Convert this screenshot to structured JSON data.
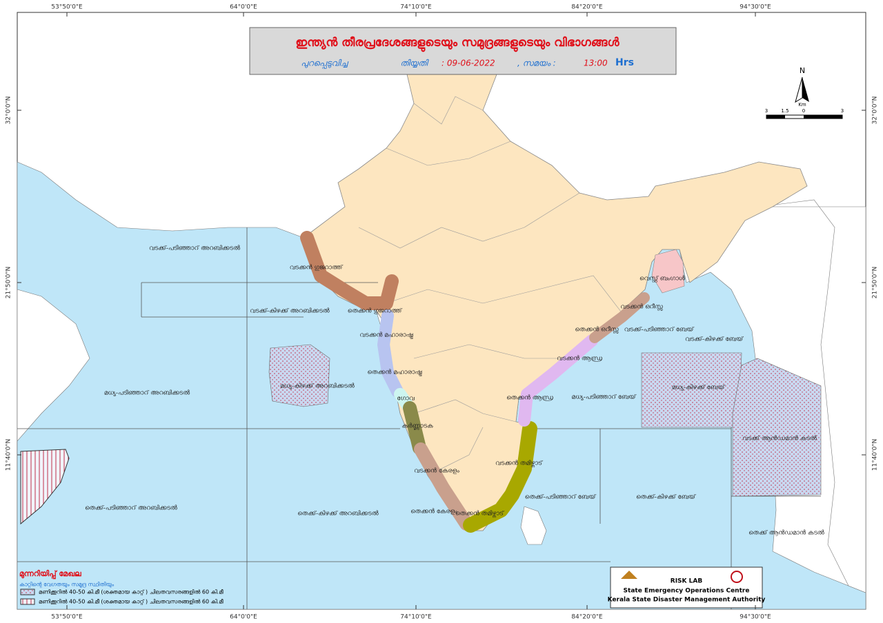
{
  "header": {
    "title": "ഇന്ത്യൻ തീരപ്രദേശങ്ങളുടെയും സമുദ്രങ്ങളുടെയും വിഭാഗങ്ങൾ",
    "issued_label": "പുറപ്പെടുവിച്ച",
    "date_label": "തിയ്യതി",
    "date": ": 09-06-2022",
    "time_label": ", സമയം :",
    "time": "13:00",
    "time_unit": "Hrs"
  },
  "graticule": {
    "top_labels": [
      "53°50'0\"E",
      "64°0'0\"E",
      "74°10'0\"E",
      "84°20'0\"E",
      "94°30'0\"E"
    ],
    "side_labels": [
      "32°0'0\"N",
      "21°50'0\"N",
      "11°40'0\"N"
    ]
  },
  "north_arrow": "N",
  "scale": {
    "unit": "Km",
    "ticks": [
      "3",
      "1.5",
      "0",
      "3"
    ]
  },
  "regions": [
    "വടക്ക്-പടിഞ്ഞാറ് അറബിക്കടൽ",
    "വടക്കൻ ഗുജറാത്ത്",
    "വടക്ക്-കിഴക്ക് അറബിക്കടൽ",
    "തെക്കൻ ഗുജറാത്ത്",
    "വടക്കൻ മഹാരാഷ്ട്ര",
    "തെക്കൻ മഹാരാഷ്ട്ര",
    "മധ്യ-കിഴക്ക് അറബിക്കടൽ",
    "മധ്യ-പടിഞ്ഞാറ് അറബിക്കടൽ",
    "ഗോവ",
    "കർണ്ണാടക",
    "വടക്കൻ കേരളം",
    "തെക്കൻ കേരളം",
    "തെക്കൻ തമിഴ്നാട്",
    "വടക്കൻ തമിഴ്നാട്",
    "തെക്കൻ ആന്ധ്ര",
    "വടക്കൻ ആന്ധ്ര",
    "മധ്യ-പടിഞ്ഞാറ് ബേയ്",
    "തെക്കൻ ഒറീസ്സ",
    "വടക്ക്-പടിഞ്ഞാറ് ബേയ്",
    "വടക്കൻ ഒറീസ്സ",
    "വെസ്റ്റ് ബംഗാൾ",
    "വടക്ക്-കിഴക്ക് ബേയ്",
    "മധ്യ-കിഴക്ക് ബേയ്",
    "വടക്ക് ആൻഡമാൻ കടൽ",
    "തെക്ക്-പടിഞ്ഞാറ് ബേയ്",
    "തെക്ക്-കിഴക്ക് ബേയ്",
    "തെക്ക് ആൻഡമാൻ കടൽ",
    "തെക്ക്-പടിഞ്ഞാറ് അറബിക്കടൽ",
    "തെക്ക്-കിഴക്ക് അറബിക്കടൽ"
  ],
  "legend": {
    "title": "മുന്നറിയിപ്പ് മേഖല",
    "subtitle": "കാറ്റിന്റെ വേഗതയും സമുദ്ര സ്ഥിതിയും",
    "items": [
      "മണിക്കൂറിൽ 40-50 കി.മീ (ശക്തമായ കാറ്റ് ) ചിലതവസരങ്ങളിൽ 60 കി.മീ",
      "മണിക്കൂറിൽ 40-50 കി.മീ (ശക്തമായ കാറ്റ് ) ചിലതവസരങ്ങളിൽ 60 കി.മീ"
    ]
  },
  "logo": {
    "lab": "RISK LAB",
    "line1": "State Emergency Operations Centre",
    "line2": "Kerala State Disaster Management Authority"
  }
}
